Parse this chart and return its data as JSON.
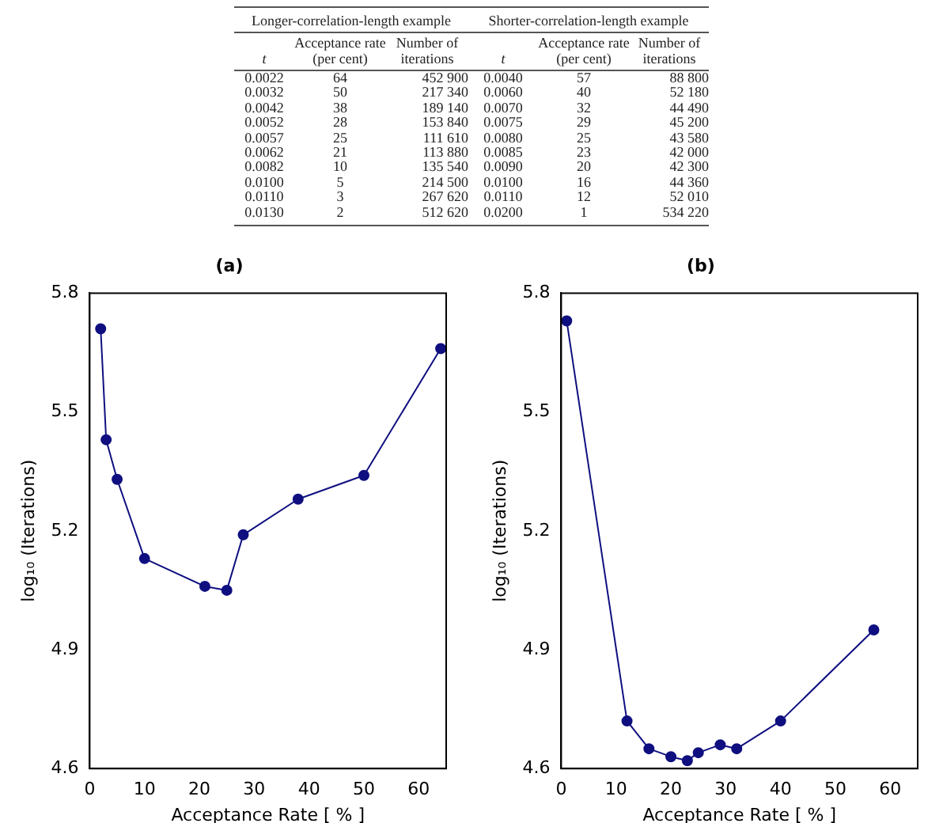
{
  "chart_data": [
    {
      "type": "other",
      "annotations": [
        "Longer-correlation-length example",
        "Shorter-correlation-length example",
        "t",
        "Acceptance rate (per cent)",
        "Number of iterations",
        "t",
        "Acceptance rate (per cent)",
        "Number of iterations",
        "0.0022",
        "64",
        "452 900",
        "0.0040",
        "57",
        "88 800",
        "0.0032",
        "50",
        "217 340",
        "0.0060",
        "40",
        "52 180",
        "0.0042",
        "38",
        "189 140",
        "0.0070",
        "32",
        "44 490",
        "0.0052",
        "28",
        "153 840",
        "0.0075",
        "29",
        "45 200",
        "0.0057",
        "25",
        "111 610",
        "0.0080",
        "25",
        "43 580",
        "0.0062",
        "21",
        "113 880",
        "0.0085",
        "23",
        "42 000",
        "0.0082",
        "10",
        "135 540",
        "0.0090",
        "20",
        "42 300",
        "0.0100",
        "5",
        "214 500",
        "0.0100",
        "16",
        "44 360",
        "0.0110",
        "3",
        "267 620",
        "0.0110",
        "12",
        "52 010",
        "0.0130",
        "2",
        "512 620",
        "0.0200",
        "1",
        "534 220"
      ]
    },
    {
      "type": "line",
      "title": "(a)",
      "xlabel": "Acceptance Rate [ % ]",
      "ylabel": "log₁₀ (Iterations)",
      "x": [
        64,
        50,
        38,
        28,
        25,
        21,
        10,
        5,
        3,
        2
      ],
      "values": [
        5.66,
        5.34,
        5.28,
        5.19,
        5.05,
        5.06,
        5.13,
        5.33,
        5.43,
        5.71
      ],
      "color": "#0f0f80",
      "marker": "circle",
      "xlim": [
        0,
        65
      ],
      "xticks": [
        0,
        10,
        20,
        30,
        40,
        50,
        60
      ],
      "ylim": [
        4.6,
        5.8
      ],
      "yticks": [
        4.6,
        4.9,
        5.2,
        5.5,
        5.8
      ]
    },
    {
      "type": "line",
      "title": "(b)",
      "xlabel": "Acceptance Rate [ % ]",
      "ylabel": "log₁₀ (Iterations)",
      "x": [
        57,
        40,
        32,
        29,
        25,
        23,
        20,
        16,
        12,
        1
      ],
      "values": [
        4.95,
        4.72,
        4.65,
        4.66,
        4.64,
        4.62,
        4.63,
        4.65,
        4.72,
        5.73
      ],
      "color": "#0f0f80",
      "marker": "circle",
      "xlim": [
        0,
        65
      ],
      "xticks": [
        0,
        10,
        20,
        30,
        40,
        50,
        60
      ],
      "ylim": [
        4.6,
        5.8
      ],
      "yticks": [
        4.6,
        4.9,
        5.2,
        5.5,
        5.8
      ]
    }
  ]
}
